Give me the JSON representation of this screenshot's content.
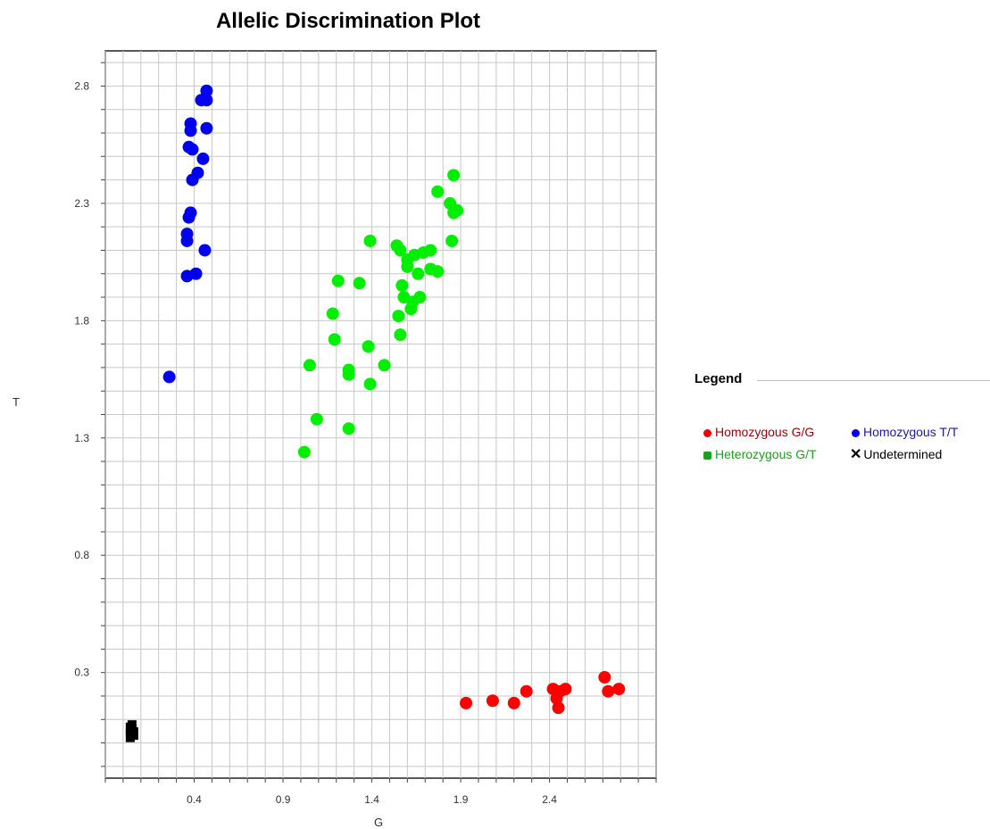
{
  "chart_data": {
    "type": "scatter",
    "title": "Allelic Discrimination Plot",
    "xlabel": "G",
    "ylabel": "T",
    "xlim": [
      -0.1,
      3.0
    ],
    "ylim": [
      -0.15,
      2.95
    ],
    "x_ticks": [
      0.4,
      0.9,
      1.4,
      1.9,
      2.4
    ],
    "x_tick_labels": [
      "0.4",
      "0.9",
      "1.4",
      "1.9",
      "2.4"
    ],
    "y_ticks": [
      0.3,
      0.8,
      1.3,
      1.8,
      2.3,
      2.8
    ],
    "y_tick_labels": [
      "0.3",
      "0.8",
      "1.3",
      "1.8",
      "2.3",
      "2.8"
    ],
    "grid": true,
    "legend_title": "Legend",
    "legend_position": "right",
    "series": [
      {
        "name": "Homozygous G/G",
        "color": "#ff0000",
        "marker": "circle",
        "points": [
          [
            1.93,
            0.17
          ],
          [
            2.08,
            0.18
          ],
          [
            2.2,
            0.17
          ],
          [
            2.27,
            0.22
          ],
          [
            2.42,
            0.23
          ],
          [
            2.44,
            0.19
          ],
          [
            2.46,
            0.22
          ],
          [
            2.49,
            0.23
          ],
          [
            2.45,
            0.15
          ],
          [
            2.71,
            0.28
          ],
          [
            2.73,
            0.22
          ],
          [
            2.79,
            0.23
          ]
        ]
      },
      {
        "name": "Homozygous T/T",
        "color": "#0000ee",
        "marker": "circle",
        "points": [
          [
            0.47,
            2.78
          ],
          [
            0.44,
            2.74
          ],
          [
            0.47,
            2.74
          ],
          [
            0.38,
            2.64
          ],
          [
            0.38,
            2.61
          ],
          [
            0.47,
            2.62
          ],
          [
            0.37,
            2.54
          ],
          [
            0.39,
            2.53
          ],
          [
            0.45,
            2.49
          ],
          [
            0.42,
            2.43
          ],
          [
            0.39,
            2.4
          ],
          [
            0.38,
            2.26
          ],
          [
            0.37,
            2.24
          ],
          [
            0.36,
            2.17
          ],
          [
            0.36,
            2.14
          ],
          [
            0.46,
            2.1
          ],
          [
            0.36,
            1.99
          ],
          [
            0.41,
            2.0
          ],
          [
            0.26,
            1.56
          ]
        ]
      },
      {
        "name": "Heterozygous G/T",
        "color": "#00ee00",
        "marker": "circle",
        "points": [
          [
            1.86,
            2.42
          ],
          [
            1.77,
            2.35
          ],
          [
            1.84,
            2.3
          ],
          [
            1.86,
            2.26
          ],
          [
            1.88,
            2.27
          ],
          [
            1.39,
            2.14
          ],
          [
            1.85,
            2.14
          ],
          [
            1.54,
            2.12
          ],
          [
            1.56,
            2.1
          ],
          [
            1.6,
            2.06
          ],
          [
            1.64,
            2.08
          ],
          [
            1.69,
            2.09
          ],
          [
            1.73,
            2.1
          ],
          [
            1.6,
            2.03
          ],
          [
            1.66,
            2.0
          ],
          [
            1.73,
            2.02
          ],
          [
            1.77,
            2.01
          ],
          [
            1.21,
            1.97
          ],
          [
            1.33,
            1.96
          ],
          [
            1.57,
            1.95
          ],
          [
            1.58,
            1.9
          ],
          [
            1.63,
            1.88
          ],
          [
            1.67,
            1.9
          ],
          [
            1.62,
            1.85
          ],
          [
            1.18,
            1.83
          ],
          [
            1.55,
            1.82
          ],
          [
            1.56,
            1.74
          ],
          [
            1.19,
            1.72
          ],
          [
            1.38,
            1.69
          ],
          [
            1.05,
            1.61
          ],
          [
            1.27,
            1.59
          ],
          [
            1.27,
            1.57
          ],
          [
            1.47,
            1.61
          ],
          [
            1.39,
            1.53
          ],
          [
            1.09,
            1.38
          ],
          [
            1.27,
            1.34
          ],
          [
            1.02,
            1.24
          ]
        ]
      },
      {
        "name": "Undetermined",
        "color": "#000000",
        "marker": "x",
        "points": [
          [
            0.04,
            0.03
          ],
          [
            0.05,
            0.05
          ],
          [
            0.06,
            0.04
          ],
          [
            0.05,
            0.07
          ],
          [
            0.04,
            0.06
          ]
        ]
      }
    ]
  },
  "legend_text_colors": [
    "#9a0000",
    "#1a1aa0",
    "#1aa01a",
    "#000000"
  ]
}
